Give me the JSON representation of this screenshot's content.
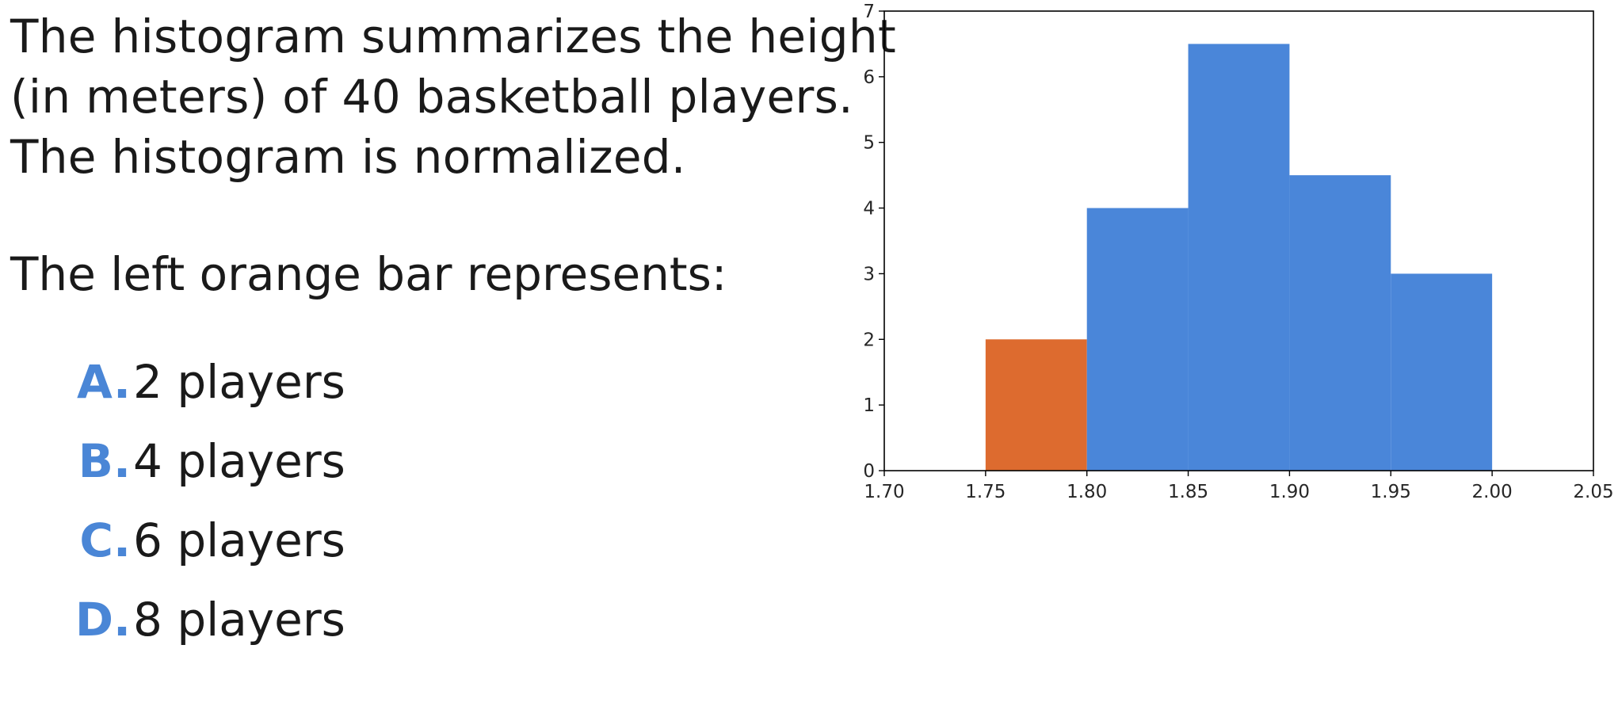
{
  "question": {
    "lines": [
      "The histogram summarizes the height",
      "(in meters) of 40 basketball players.",
      "The histogram is normalized."
    ],
    "prompt": "The left orange bar represents:"
  },
  "options": [
    {
      "letter": "A.",
      "text": "2 players"
    },
    {
      "letter": "B.",
      "text": "4 players"
    },
    {
      "letter": "C.",
      "text": "6 players"
    },
    {
      "letter": "D.",
      "text": "8 players"
    }
  ],
  "colors": {
    "accent": "#4a86d6",
    "bar_blue": "#4a86d9",
    "bar_orange": "#dd6b2f"
  },
  "chart_data": {
    "type": "bar",
    "title": "",
    "xlabel": "",
    "ylabel": "",
    "xlim": [
      1.7,
      2.05
    ],
    "ylim": [
      0,
      7
    ],
    "x_ticks": [
      "1.70",
      "1.75",
      "1.80",
      "1.85",
      "1.90",
      "1.95",
      "2.00",
      "2.05"
    ],
    "y_ticks": [
      "0",
      "1",
      "2",
      "3",
      "4",
      "5",
      "6",
      "7"
    ],
    "grid": false,
    "legend": "none",
    "bins": [
      {
        "x0": 1.75,
        "x1": 1.8,
        "height": 2,
        "color": "#dd6b2f"
      },
      {
        "x0": 1.8,
        "x1": 1.85,
        "height": 4,
        "color": "#4a86d9"
      },
      {
        "x0": 1.85,
        "x1": 1.9,
        "height": 6.5,
        "color": "#4a86d9"
      },
      {
        "x0": 1.9,
        "x1": 1.95,
        "height": 4.5,
        "color": "#4a86d9"
      },
      {
        "x0": 1.95,
        "x1": 2.0,
        "height": 3,
        "color": "#4a86d9"
      }
    ]
  }
}
